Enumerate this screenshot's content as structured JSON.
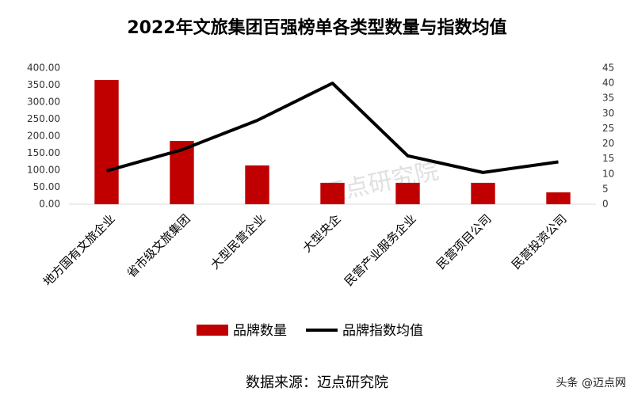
{
  "chart_data": {
    "type": "bar-line",
    "title": "2022年文旅集团百强榜单各类型数量与指数均值",
    "categories": [
      "地方国有文旅企业",
      "省市级文旅集团",
      "大型民营企业",
      "大型央企",
      "民营产业服务企业",
      "民营项目公司",
      "民营投资公司"
    ],
    "series": [
      {
        "name": "品牌数量",
        "type": "bar",
        "color": "#c00000",
        "values": [
          365,
          186,
          114,
          63,
          63,
          63,
          35
        ]
      },
      {
        "name": "品牌指数均值",
        "type": "line",
        "axis": "y2",
        "color": "#000000",
        "values": [
          11,
          18,
          27.7,
          40,
          16,
          10.5,
          14
        ]
      }
    ],
    "ylim": [
      0,
      400
    ],
    "yticks": [
      {
        "value": 0,
        "label": "0.00"
      },
      {
        "value": 50,
        "label": "50.00"
      },
      {
        "value": 100,
        "label": "100.00"
      },
      {
        "value": 150,
        "label": "150.00"
      },
      {
        "value": 200,
        "label": "200.00"
      },
      {
        "value": 250,
        "label": "250.00"
      },
      {
        "value": 300,
        "label": "300.00"
      },
      {
        "value": 350,
        "label": "350.00"
      },
      {
        "value": 400,
        "label": "400.00"
      }
    ],
    "y2lim": [
      0,
      45
    ],
    "y2ticks": [
      0,
      5,
      10,
      15,
      20,
      25,
      30,
      35,
      40,
      45
    ],
    "legend": "bottom",
    "watermark": "迈点研究院",
    "source": "数据来源：迈点研究院",
    "credit": "头条 @迈点网"
  }
}
